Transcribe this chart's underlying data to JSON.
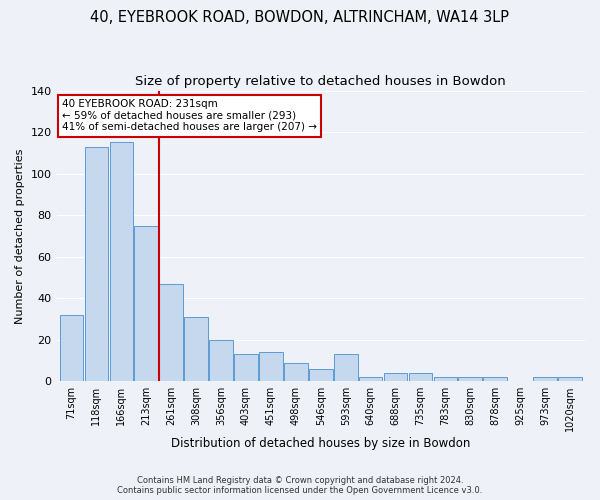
{
  "title1": "40, EYEBROOK ROAD, BOWDON, ALTRINCHAM, WA14 3LP",
  "title2": "Size of property relative to detached houses in Bowdon",
  "xlabel": "Distribution of detached houses by size in Bowdon",
  "ylabel": "Number of detached properties",
  "bar_labels": [
    "71sqm",
    "118sqm",
    "166sqm",
    "213sqm",
    "261sqm",
    "308sqm",
    "356sqm",
    "403sqm",
    "451sqm",
    "498sqm",
    "546sqm",
    "593sqm",
    "640sqm",
    "688sqm",
    "735sqm",
    "783sqm",
    "830sqm",
    "878sqm",
    "925sqm",
    "973sqm",
    "1020sqm"
  ],
  "bar_values": [
    32,
    113,
    115,
    75,
    47,
    31,
    20,
    13,
    14,
    9,
    6,
    13,
    2,
    4,
    4,
    2,
    2,
    2,
    0,
    2,
    2
  ],
  "bar_color": "#c5d8ed",
  "bar_edge_color": "#5b9bd5",
  "vline_x": 3.5,
  "vline_color": "#cc0000",
  "ylim": [
    0,
    140
  ],
  "yticks": [
    0,
    20,
    40,
    60,
    80,
    100,
    120,
    140
  ],
  "annotation_title": "40 EYEBROOK ROAD: 231sqm",
  "annotation_line1": "← 59% of detached houses are smaller (293)",
  "annotation_line2": "41% of semi-detached houses are larger (207) →",
  "annotation_box_color": "#ffffff",
  "annotation_box_edge": "#cc0000",
  "footer1": "Contains HM Land Registry data © Crown copyright and database right 2024.",
  "footer2": "Contains public sector information licensed under the Open Government Licence v3.0.",
  "background_color": "#eef2f8",
  "grid_color": "#ffffff",
  "title_fontsize": 10.5,
  "subtitle_fontsize": 9.5
}
